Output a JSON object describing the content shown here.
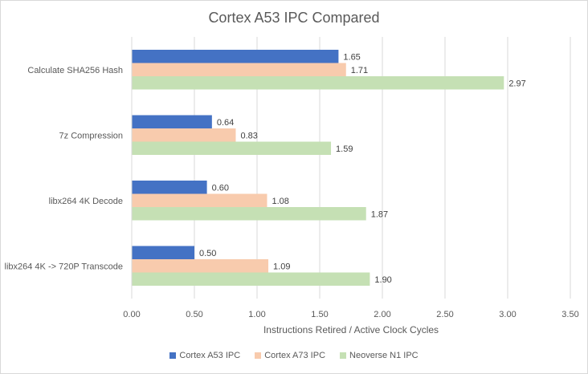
{
  "chart_data": {
    "type": "bar",
    "orientation": "horizontal",
    "title": "Cortex A53 IPC Compared",
    "xlabel": "Instructions Retired / Active Clock Cycles",
    "ylabel": "",
    "xlim": [
      0,
      3.5
    ],
    "x_ticks": [
      "0.00",
      "0.50",
      "1.00",
      "1.50",
      "2.00",
      "2.50",
      "3.00",
      "3.50"
    ],
    "grid": true,
    "legend_position": "bottom",
    "categories": [
      "Calculate SHA256 Hash",
      "7z Compression",
      "libx264 4K Decode",
      "libx264 4K -> 720P Transcode"
    ],
    "series": [
      {
        "name": "Cortex A53 IPC",
        "color": "#4472c4",
        "values": [
          1.65,
          0.64,
          0.6,
          0.5
        ],
        "labels": [
          "1.65",
          "0.64",
          "0.60",
          "0.50"
        ]
      },
      {
        "name": "Cortex A73 IPC",
        "color": "#f8cbad",
        "values": [
          1.71,
          0.83,
          1.08,
          1.09
        ],
        "labels": [
          "1.71",
          "0.83",
          "1.08",
          "1.09"
        ]
      },
      {
        "name": "Neoverse N1 IPC",
        "color": "#c5e0b4",
        "values": [
          2.97,
          1.59,
          1.87,
          1.9
        ],
        "labels": [
          "2.97",
          "1.59",
          "1.87",
          "1.90"
        ]
      }
    ]
  }
}
